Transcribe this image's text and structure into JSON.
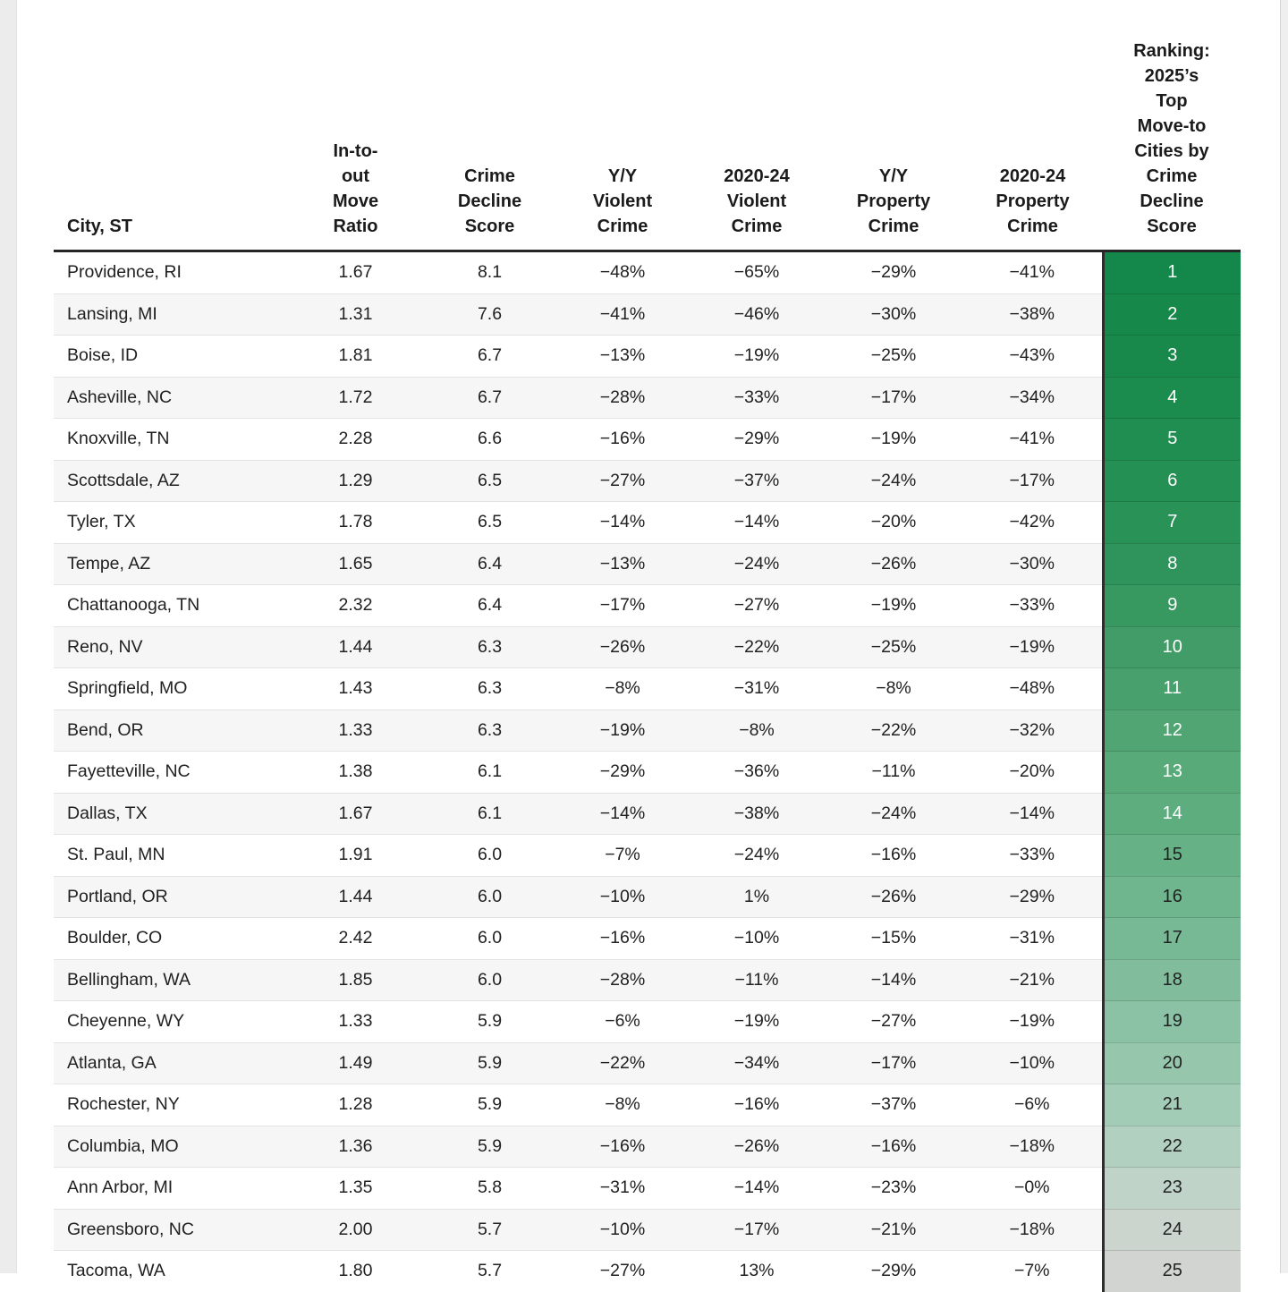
{
  "page": {
    "background": "#ffffff",
    "left_gutter_color": "#ececec",
    "right_gutter_color": "#efefef",
    "accent_green": "#14874a",
    "zebra_stripe": "#f6f6f6",
    "header_rule": "#252525",
    "rank_divider": "#2d2d2d"
  },
  "chart_data": {
    "type": "table",
    "title": "Ranking: 2025's Top Move-to Cities by Crime Decline Score",
    "column_headers_display": [
      "City, ST",
      "In-to-\nout\nMove\nRatio",
      "Crime\nDecline\nScore",
      "Y/Y\nViolent\nCrime",
      "2020-24\nViolent\nCrime",
      "Y/Y\nProperty\nCrime",
      "2020-24\nProperty\nCrime",
      "Ranking:\n2025’s\nTop\nMove-to\nCities by\nCrime\nDecline\nScore"
    ],
    "rows": [
      {
        "city": "Providence, RI",
        "move_ratio": "1.67",
        "crime_decline_score": "8.1",
        "yy_violent_crime": "−48%",
        "violent_crime_2020_24": "−65%",
        "yy_property_crime": "−29%",
        "property_crime_2020_24": "−41%",
        "rank": "1",
        "rank_bg": "#14874a",
        "rank_fg": "#ffffff"
      },
      {
        "city": "Lansing, MI",
        "move_ratio": "1.31",
        "crime_decline_score": "7.6",
        "yy_violent_crime": "−41%",
        "violent_crime_2020_24": "−46%",
        "yy_property_crime": "−30%",
        "property_crime_2020_24": "−38%",
        "rank": "2",
        "rank_bg": "#168849",
        "rank_fg": "#ffffff"
      },
      {
        "city": "Boise, ID",
        "move_ratio": "1.81",
        "crime_decline_score": "6.7",
        "yy_violent_crime": "−13%",
        "violent_crime_2020_24": "−19%",
        "yy_property_crime": "−25%",
        "property_crime_2020_24": "−43%",
        "rank": "3",
        "rank_bg": "#18894b",
        "rank_fg": "#ffffff"
      },
      {
        "city": "Asheville, NC",
        "move_ratio": "1.72",
        "crime_decline_score": "6.7",
        "yy_violent_crime": "−28%",
        "violent_crime_2020_24": "−33%",
        "yy_property_crime": "−17%",
        "property_crime_2020_24": "−34%",
        "rank": "4",
        "rank_bg": "#1c8b4e",
        "rank_fg": "#ffffff"
      },
      {
        "city": "Knoxville, TN",
        "move_ratio": "2.28",
        "crime_decline_score": "6.6",
        "yy_violent_crime": "−16%",
        "violent_crime_2020_24": "−29%",
        "yy_property_crime": "−19%",
        "property_crime_2020_24": "−41%",
        "rank": "5",
        "rank_bg": "#208d51",
        "rank_fg": "#ffffff"
      },
      {
        "city": "Scottsdale, AZ",
        "move_ratio": "1.29",
        "crime_decline_score": "6.5",
        "yy_violent_crime": "−27%",
        "violent_crime_2020_24": "−37%",
        "yy_property_crime": "−24%",
        "property_crime_2020_24": "−17%",
        "rank": "6",
        "rank_bg": "#249054",
        "rank_fg": "#ffffff"
      },
      {
        "city": "Tyler, TX",
        "move_ratio": "1.78",
        "crime_decline_score": "6.5",
        "yy_violent_crime": "−14%",
        "violent_crime_2020_24": "−14%",
        "yy_property_crime": "−20%",
        "property_crime_2020_24": "−42%",
        "rank": "7",
        "rank_bg": "#299257",
        "rank_fg": "#ffffff"
      },
      {
        "city": "Tempe, AZ",
        "move_ratio": "1.65",
        "crime_decline_score": "6.4",
        "yy_violent_crime": "−13%",
        "violent_crime_2020_24": "−24%",
        "yy_property_crime": "−26%",
        "property_crime_2020_24": "−30%",
        "rank": "8",
        "rank_bg": "#2f945b",
        "rank_fg": "#ffffff"
      },
      {
        "city": "Chattanooga, TN",
        "move_ratio": "2.32",
        "crime_decline_score": "6.4",
        "yy_violent_crime": "−17%",
        "violent_crime_2020_24": "−27%",
        "yy_property_crime": "−19%",
        "property_crime_2020_24": "−33%",
        "rank": "9",
        "rank_bg": "#379860",
        "rank_fg": "#ffffff"
      },
      {
        "city": "Reno, NV",
        "move_ratio": "1.44",
        "crime_decline_score": "6.3",
        "yy_violent_crime": "−26%",
        "violent_crime_2020_24": "−22%",
        "yy_property_crime": "−25%",
        "property_crime_2020_24": "−19%",
        "rank": "10",
        "rank_bg": "#419c67",
        "rank_fg": "#ffffff"
      },
      {
        "city": "Springfield, MO",
        "move_ratio": "1.43",
        "crime_decline_score": "6.3",
        "yy_violent_crime": "−8%",
        "violent_crime_2020_24": "−31%",
        "yy_property_crime": "−8%",
        "property_crime_2020_24": "−48%",
        "rank": "11",
        "rank_bg": "#48a16d",
        "rank_fg": "#ffffff"
      },
      {
        "city": "Bend, OR",
        "move_ratio": "1.33",
        "crime_decline_score": "6.3",
        "yy_violent_crime": "−19%",
        "violent_crime_2020_24": "−8%",
        "yy_property_crime": "−22%",
        "property_crime_2020_24": "−32%",
        "rank": "12",
        "rank_bg": "#50a573",
        "rank_fg": "#ffffff"
      },
      {
        "city": "Fayetteville, NC",
        "move_ratio": "1.38",
        "crime_decline_score": "6.1",
        "yy_violent_crime": "−29%",
        "violent_crime_2020_24": "−36%",
        "yy_property_crime": "−11%",
        "property_crime_2020_24": "−20%",
        "rank": "13",
        "rank_bg": "#58aa79",
        "rank_fg": "#ffffff"
      },
      {
        "city": "Dallas, TX",
        "move_ratio": "1.67",
        "crime_decline_score": "6.1",
        "yy_violent_crime": "−14%",
        "violent_crime_2020_24": "−38%",
        "yy_property_crime": "−24%",
        "property_crime_2020_24": "−14%",
        "rank": "14",
        "rank_bg": "#5ead7e",
        "rank_fg": "#ffffff"
      },
      {
        "city": "St. Paul, MN",
        "move_ratio": "1.91",
        "crime_decline_score": "6.0",
        "yy_violent_crime": "−7%",
        "violent_crime_2020_24": "−24%",
        "yy_property_crime": "−16%",
        "property_crime_2020_24": "−33%",
        "rank": "15",
        "rank_bg": "#66b186",
        "rank_fg": "#212121"
      },
      {
        "city": "Portland, OR",
        "move_ratio": "1.44",
        "crime_decline_score": "6.0",
        "yy_violent_crime": "−10%",
        "violent_crime_2020_24": "1%",
        "yy_property_crime": "−26%",
        "property_crime_2020_24": "−29%",
        "rank": "16",
        "rank_bg": "#6fb58d",
        "rank_fg": "#212121"
      },
      {
        "city": "Boulder, CO",
        "move_ratio": "2.42",
        "crime_decline_score": "6.0",
        "yy_violent_crime": "−16%",
        "violent_crime_2020_24": "−10%",
        "yy_property_crime": "−15%",
        "property_crime_2020_24": "−31%",
        "rank": "17",
        "rank_bg": "#78b995",
        "rank_fg": "#212121"
      },
      {
        "city": "Bellingham, WA",
        "move_ratio": "1.85",
        "crime_decline_score": "6.0",
        "yy_violent_crime": "−28%",
        "violent_crime_2020_24": "−11%",
        "yy_property_crime": "−14%",
        "property_crime_2020_24": "−21%",
        "rank": "18",
        "rank_bg": "#81bd9c",
        "rank_fg": "#212121"
      },
      {
        "city": "Cheyenne, WY",
        "move_ratio": "1.33",
        "crime_decline_score": "5.9",
        "yy_violent_crime": "−6%",
        "violent_crime_2020_24": "−19%",
        "yy_property_crime": "−27%",
        "property_crime_2020_24": "−19%",
        "rank": "19",
        "rank_bg": "#8bc2a5",
        "rank_fg": "#212121"
      },
      {
        "city": "Atlanta, GA",
        "move_ratio": "1.49",
        "crime_decline_score": "5.9",
        "yy_violent_crime": "−22%",
        "violent_crime_2020_24": "−34%",
        "yy_property_crime": "−17%",
        "property_crime_2020_24": "−10%",
        "rank": "20",
        "rank_bg": "#96c7ad",
        "rank_fg": "#212121"
      },
      {
        "city": "Rochester, NY",
        "move_ratio": "1.28",
        "crime_decline_score": "5.9",
        "yy_violent_crime": "−8%",
        "violent_crime_2020_24": "−16%",
        "yy_property_crime": "−37%",
        "property_crime_2020_24": "−6%",
        "rank": "21",
        "rank_bg": "#a3ccb7",
        "rank_fg": "#212121"
      },
      {
        "city": "Columbia, MO",
        "move_ratio": "1.36",
        "crime_decline_score": "5.9",
        "yy_violent_crime": "−16%",
        "violent_crime_2020_24": "−26%",
        "yy_property_crime": "−16%",
        "property_crime_2020_24": "−18%",
        "rank": "22",
        "rank_bg": "#b1d0c0",
        "rank_fg": "#212121"
      },
      {
        "city": "Ann Arbor, MI",
        "move_ratio": "1.35",
        "crime_decline_score": "5.8",
        "yy_violent_crime": "−31%",
        "violent_crime_2020_24": "−14%",
        "yy_property_crime": "−23%",
        "property_crime_2020_24": "−0%",
        "rank": "23",
        "rank_bg": "#c0d3c8",
        "rank_fg": "#212121"
      },
      {
        "city": "Greensboro, NC",
        "move_ratio": "2.00",
        "crime_decline_score": "5.7",
        "yy_violent_crime": "−10%",
        "violent_crime_2020_24": "−17%",
        "yy_property_crime": "−21%",
        "property_crime_2020_24": "−18%",
        "rank": "24",
        "rank_bg": "#cbd4cd",
        "rank_fg": "#212121"
      },
      {
        "city": "Tacoma, WA",
        "move_ratio": "1.80",
        "crime_decline_score": "5.7",
        "yy_violent_crime": "−27%",
        "violent_crime_2020_24": "13%",
        "yy_property_crime": "−29%",
        "property_crime_2020_24": "−7%",
        "rank": "25",
        "rank_bg": "#d2d4d2",
        "rank_fg": "#212121"
      }
    ]
  }
}
